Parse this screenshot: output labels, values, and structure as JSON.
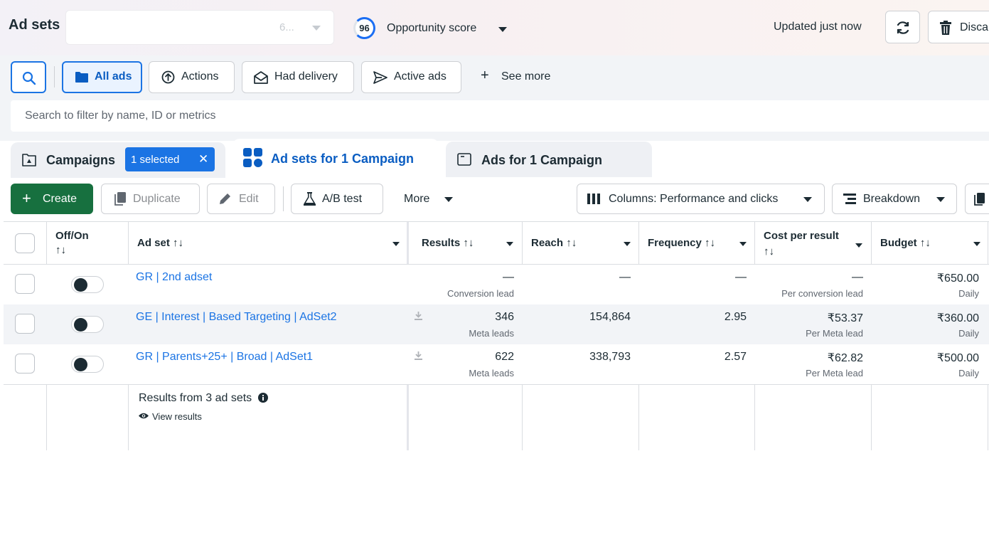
{
  "header": {
    "title": "Ad sets",
    "account_suffix": "6...",
    "opportunity_score": "96",
    "opportunity_label": "Opportunity score",
    "updated": "Updated just now",
    "discard_label": "Disca"
  },
  "filters": {
    "all_ads": "All ads",
    "actions": "Actions",
    "had_delivery": "Had delivery",
    "active_ads": "Active ads",
    "see_more": "See more",
    "search_placeholder": "Search to filter by name, ID or metrics"
  },
  "tabs": {
    "campaigns": "Campaigns",
    "selected_chip": "1 selected",
    "chip_close": "✕",
    "adsets": "Ad sets for 1 Campaign",
    "ads": "Ads for 1 Campaign"
  },
  "toolbar": {
    "create": "Create",
    "duplicate": "Duplicate",
    "edit": "Edit",
    "ab_test": "A/B test",
    "more": "More",
    "columns": "Columns: Performance and clicks",
    "breakdown": "Breakdown"
  },
  "table": {
    "headers": {
      "onoff": "Off/On",
      "onoff_sort": "↑↓",
      "adset": "Ad set ↑↓",
      "results": "Results ↑↓",
      "reach": "Reach ↑↓",
      "frequency": "Frequency ↑↓",
      "cpr": "Cost per result",
      "cpr_sort": "↑↓",
      "budget": "Budget ↑↓"
    },
    "rows": [
      {
        "name": "GR | 2nd adset",
        "on": false,
        "results": "—",
        "results_sub": "Conversion lead",
        "reach": "—",
        "frequency": "—",
        "cpr": "—",
        "cpr_sub": "Per conversion lead",
        "budget": "₹650.00",
        "budget_sub": "Daily"
      },
      {
        "name": "GE | Interest | Based Targeting | AdSet2",
        "on": false,
        "results": "346",
        "results_sub": "Meta leads",
        "reach": "154,864",
        "frequency": "2.95",
        "cpr": "₹53.37",
        "cpr_sub": "Per Meta lead",
        "budget": "₹360.00",
        "budget_sub": "Daily"
      },
      {
        "name": "GR | Parents+25+ | Broad | AdSet1",
        "on": false,
        "results": "622",
        "results_sub": "Meta leads",
        "reach": "338,793",
        "frequency": "2.57",
        "cpr": "₹62.82",
        "cpr_sub": "Per Meta lead",
        "budget": "₹500.00",
        "budget_sub": "Daily"
      }
    ],
    "summary": "Results from 3 ad sets",
    "view_results": "View results"
  },
  "colors": {
    "accent": "#1b74e4",
    "create_green": "#17703f",
    "link": "#1b74e4",
    "text": "#1c2b33"
  },
  "icons": [
    "search-icon",
    "folder-icon",
    "actions-icon",
    "envelope-icon",
    "send-icon",
    "plus-icon",
    "campaign-icon",
    "grid-icon",
    "ad-icon",
    "duplicate-icon",
    "pencil-icon",
    "flask-icon",
    "columns-icon",
    "breakdown-icon",
    "export-icon",
    "refresh-icon",
    "trash-icon",
    "info-icon",
    "eye-icon",
    "download-icon"
  ]
}
